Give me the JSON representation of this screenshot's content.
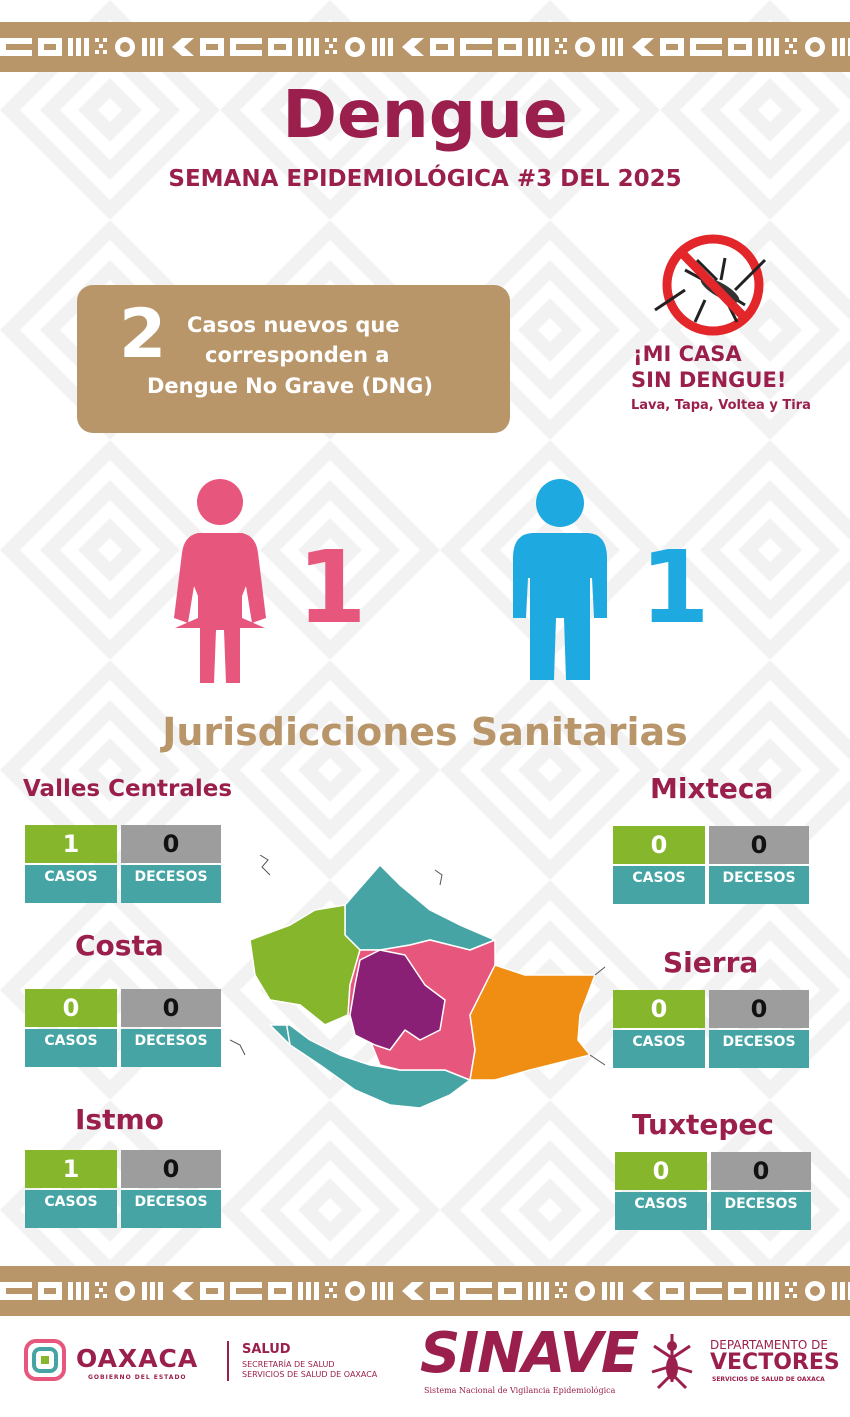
{
  "header": {
    "title": "Dengue",
    "subtitle": "SEMANA EPIDEMIOLÓGICA #3 DEL 2025"
  },
  "new_cases": {
    "number": "2",
    "line1": "Casos nuevos que",
    "line2": "corresponden a",
    "line3": "Dengue No Grave (DNG)"
  },
  "campaign": {
    "line1": "¡MI CASA",
    "line2a": "SIN ",
    "line2b": "DENGUE!",
    "line3": "Lava, Tapa, Voltea y Tira",
    "icon": "no-mosquito-icon"
  },
  "gender": {
    "female_count": "1",
    "male_count": "1",
    "female_color": "#e7567c",
    "male_color": "#1ea9e1"
  },
  "section_title": "Jurisdicciones Sanitarias",
  "labels": {
    "casos": "CASOS",
    "decesos": "DECESOS"
  },
  "jurisdictions": {
    "valles": {
      "name": "Valles Centrales",
      "casos": "1",
      "decesos": "0",
      "color": "#86b62c"
    },
    "costa": {
      "name": "Costa",
      "casos": "0",
      "decesos": "0",
      "color": "#e7567c"
    },
    "istmo": {
      "name": "Istmo",
      "casos": "1",
      "decesos": "0",
      "color": "#ef8e13"
    },
    "mixteca": {
      "name": "Mixteca",
      "casos": "0",
      "decesos": "0",
      "color": "#46a4a5"
    },
    "sierra": {
      "name": "Sierra",
      "casos": "0",
      "decesos": "0",
      "color": "#8a2075"
    },
    "tuxtepec": {
      "name": "Tuxtepec",
      "casos": "0",
      "decesos": "0",
      "color": "#46a4a5"
    }
  },
  "footer": {
    "oaxaca": "OAXACA",
    "oaxaca_sub": "GOBIERNO DEL ESTADO",
    "salud": "SALUD",
    "salud_sub1": "SECRETARÍA DE SALUD",
    "salud_sub2": "SERVICIOS DE SALUD DE OAXACA",
    "sinave": "SINAVE",
    "sinave_sub": "Sistema Nacional de Vigilancia Epidemiológica",
    "vectores_l1": "DEPARTAMENTO DE",
    "vectores_l2": "VECTORES",
    "vectores_l3": "SERVICIOS DE SALUD DE OAXACA"
  },
  "colors": {
    "brand": "#9b1f4c",
    "gold": "#b8966a",
    "green": "#86b62c",
    "gray": "#9d9d9d",
    "teal": "#46a4a5"
  }
}
